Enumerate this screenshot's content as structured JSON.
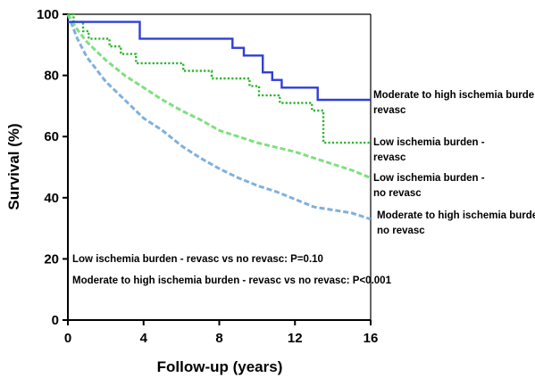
{
  "chart_data": {
    "type": "line",
    "title": "",
    "xlabel": "Follow-up (years)",
    "ylabel": "Survival (%)",
    "xlim": [
      0,
      16
    ],
    "ylim": [
      0,
      100
    ],
    "xticks": [
      0,
      4,
      8,
      12,
      16
    ],
    "yticks": [
      0,
      20,
      40,
      60,
      80,
      100
    ],
    "grid": false,
    "annotations": [
      "Low ischemia burden - revasc vs no revasc: P=0.10",
      "Moderate to high ischemia burden - revasc vs no revasc: P<0.001"
    ],
    "series": [
      {
        "label": [
          "Moderate to high ischemia burden -",
          "revasc"
        ],
        "color": "#2f3fd6",
        "style": "solid",
        "step": true,
        "x": [
          0,
          3.8,
          8.7,
          9.3,
          10.3,
          10.8,
          11.3,
          13.2,
          16
        ],
        "y": [
          97.5,
          92,
          89,
          86.5,
          81,
          78.5,
          76,
          72,
          72
        ]
      },
      {
        "label": [
          "Low ischemia burden -",
          "revasc"
        ],
        "color": "#2bb52b",
        "style": "dotted",
        "step": true,
        "x": [
          0,
          0.3,
          0.8,
          1.1,
          2.2,
          2.8,
          3.6,
          6.1,
          7.6,
          9.6,
          10.1,
          11.2,
          12.9,
          13.5,
          16
        ],
        "y": [
          100,
          97.5,
          94.5,
          92,
          89.5,
          87,
          84,
          81.5,
          79,
          76.5,
          73.5,
          71,
          68.5,
          58,
          58
        ]
      },
      {
        "label": [
          "Low ischemia burden -",
          "no revasc"
        ],
        "color": "#7ee07e",
        "style": "dashed",
        "step": false,
        "x": [
          0,
          0.5,
          1,
          1.5,
          2,
          3,
          4,
          5,
          6,
          7,
          8,
          9,
          10,
          11,
          12,
          13,
          14,
          15,
          16
        ],
        "y": [
          100,
          95,
          91,
          88,
          85,
          80,
          76,
          72,
          68.5,
          65.5,
          62,
          60,
          58,
          56.5,
          55,
          53,
          51,
          49,
          46.5
        ]
      },
      {
        "label": [
          "Moderate to high ischemia burden -",
          "no revasc"
        ],
        "color": "#7fb0dd",
        "style": "dashed",
        "step": false,
        "x": [
          0,
          0.5,
          1,
          1.5,
          2,
          3,
          4,
          5,
          6,
          7,
          8,
          9,
          10,
          11,
          12,
          13,
          14,
          15,
          16
        ],
        "y": [
          100,
          92,
          86,
          82,
          78,
          72,
          66,
          62,
          57,
          53,
          49.5,
          46.5,
          44,
          42,
          39.5,
          37,
          36,
          35,
          33
        ]
      }
    ]
  }
}
